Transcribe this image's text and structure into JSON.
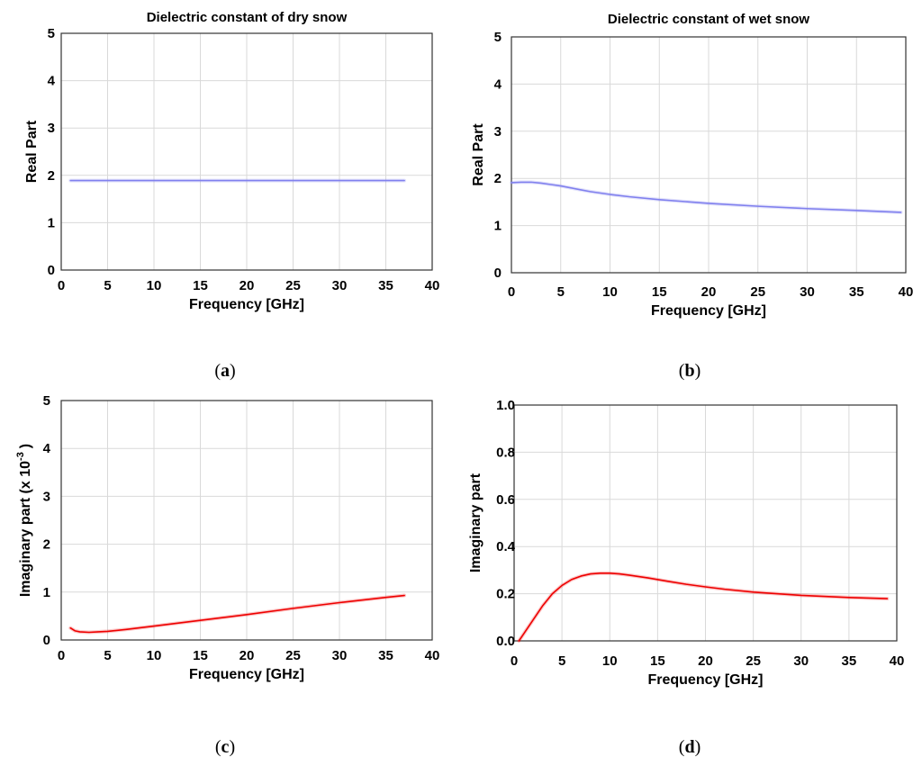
{
  "chart_data": [
    {
      "type": "line",
      "panel_label": "a",
      "title": "Dielectric constant of dry snow",
      "xlabel": "Frequency [GHz]",
      "ylabel": "Real Part",
      "ylabel_sup": "",
      "ylabel_suffix": "",
      "xlim": [
        0,
        40
      ],
      "ylim": [
        0,
        5
      ],
      "xticks": [
        0,
        5,
        10,
        15,
        20,
        25,
        30,
        35,
        40
      ],
      "yticks": [
        0,
        1,
        2,
        3,
        4,
        5
      ],
      "ytick_labels": [
        "0",
        "1",
        "2",
        "3",
        "4",
        "5"
      ],
      "grid": true,
      "series": [
        {
          "color": "#8080ee",
          "x": [
            1,
            5,
            10,
            15,
            20,
            25,
            30,
            35,
            37
          ],
          "y": [
            1.89,
            1.89,
            1.89,
            1.89,
            1.89,
            1.89,
            1.89,
            1.89,
            1.89
          ]
        }
      ]
    },
    {
      "type": "line",
      "panel_label": "b",
      "title": "Dielectric constant of wet snow",
      "xlabel": "Frequency [GHz]",
      "ylabel": "Real Part",
      "ylabel_sup": "",
      "ylabel_suffix": "",
      "xlim": [
        0,
        40
      ],
      "ylim": [
        0,
        5
      ],
      "xticks": [
        0,
        5,
        10,
        15,
        20,
        25,
        30,
        35,
        40
      ],
      "yticks": [
        0,
        1,
        2,
        3,
        4,
        5
      ],
      "ytick_labels": [
        "0",
        "1",
        "2",
        "3",
        "4",
        "5"
      ],
      "grid": true,
      "series": [
        {
          "color": "#8080ee",
          "x": [
            0,
            1,
            2,
            3,
            4,
            5,
            6,
            7,
            8,
            10,
            12,
            15,
            20,
            25,
            30,
            35,
            39.5
          ],
          "y": [
            1.91,
            1.92,
            1.92,
            1.9,
            1.87,
            1.84,
            1.8,
            1.76,
            1.72,
            1.66,
            1.61,
            1.55,
            1.47,
            1.41,
            1.36,
            1.32,
            1.28
          ]
        }
      ]
    },
    {
      "type": "line",
      "panel_label": "c",
      "title": "",
      "xlabel": "Frequency [GHz]",
      "ylabel": "Imaginary part (x 10",
      "ylabel_sup": "-3",
      "ylabel_suffix": ")",
      "xlim": [
        0,
        40
      ],
      "ylim": [
        0,
        5
      ],
      "xticks": [
        0,
        5,
        10,
        15,
        20,
        25,
        30,
        35,
        40
      ],
      "yticks": [
        0,
        1,
        2,
        3,
        4,
        5
      ],
      "ytick_labels": [
        "0",
        "1",
        "2",
        "3",
        "4",
        "5"
      ],
      "grid": true,
      "series": [
        {
          "color": "#ee0000",
          "x": [
            1,
            1.5,
            2,
            3,
            4,
            5,
            7,
            10,
            15,
            20,
            25,
            30,
            35,
            37
          ],
          "y": [
            0.25,
            0.19,
            0.17,
            0.16,
            0.17,
            0.18,
            0.22,
            0.29,
            0.41,
            0.53,
            0.66,
            0.78,
            0.89,
            0.93
          ]
        }
      ]
    },
    {
      "type": "line",
      "panel_label": "d",
      "title": "",
      "xlabel": "Frequency [GHz]",
      "ylabel": "Imaginary part",
      "ylabel_sup": "",
      "ylabel_suffix": "",
      "xlim": [
        0,
        40
      ],
      "ylim": [
        0,
        1
      ],
      "xticks": [
        0,
        5,
        10,
        15,
        20,
        25,
        30,
        35,
        40
      ],
      "yticks": [
        0,
        0.2,
        0.4,
        0.6,
        0.8,
        1.0
      ],
      "ytick_labels": [
        "0.0",
        "0.2",
        "0.4",
        "0.6",
        "0.8",
        "1.0"
      ],
      "grid": true,
      "series": [
        {
          "color": "#ee0000",
          "x": [
            0.5,
            1,
            2,
            3,
            4,
            5,
            6,
            7,
            8,
            9,
            10,
            11,
            12,
            14,
            16,
            18,
            20,
            22,
            25,
            30,
            35,
            39
          ],
          "y": [
            0.0,
            0.03,
            0.09,
            0.15,
            0.2,
            0.235,
            0.26,
            0.275,
            0.284,
            0.287,
            0.287,
            0.284,
            0.279,
            0.267,
            0.253,
            0.24,
            0.229,
            0.219,
            0.207,
            0.193,
            0.184,
            0.179
          ]
        }
      ]
    }
  ]
}
